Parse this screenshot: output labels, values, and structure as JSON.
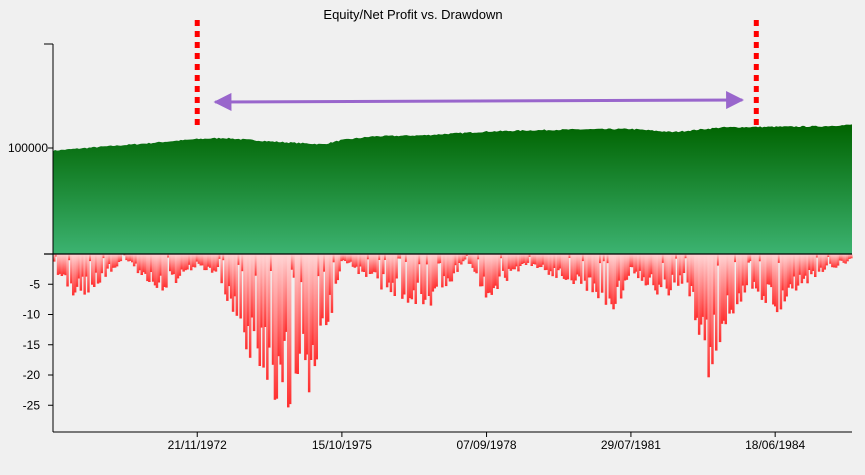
{
  "title": "Equity/Net Profit vs. Drawdown",
  "colors": {
    "background": "#f0f0f0",
    "equity_top": "#006400",
    "equity_bottom": "#3cb371",
    "drawdown_light": "#ffd6d6",
    "drawdown_dark": "#ff3030",
    "marker_line": "#ff0000",
    "arrow": "#9966cc"
  },
  "chart_data": [
    {
      "type": "area",
      "title": "Equity/Net Profit vs. Drawdown",
      "name": "equity",
      "y_tick_labels": [
        "100000"
      ],
      "ylim_note": "single labeled tick at 100000",
      "x_tick_labels": [
        "21/11/1972",
        "15/10/1975",
        "07/09/1978",
        "29/07/1981",
        "18/06/1984"
      ],
      "x": [
        "1970-01-01",
        "1970-12-01",
        "1971-12-01",
        "1972-11-21",
        "1973-06-01",
        "1974-06-01",
        "1975-06-01",
        "1975-10-15",
        "1976-06-01",
        "1977-06-01",
        "1978-09-07",
        "1979-06-01",
        "1980-06-01",
        "1981-07-29",
        "1982-06-01",
        "1983-06-01",
        "1984-06-18",
        "1985-06-01",
        "1986-01-01"
      ],
      "values": [
        97500,
        101000,
        104500,
        108500,
        109500,
        106000,
        103500,
        107500,
        111000,
        112000,
        115500,
        116500,
        117500,
        118000,
        115000,
        119500,
        120000,
        120500,
        122000
      ]
    },
    {
      "type": "area",
      "name": "drawdown",
      "y_tick_labels": [
        "-5",
        "-10",
        "-15",
        "-20",
        "-25"
      ],
      "ylim": [
        -29,
        0
      ],
      "x_tick_labels": [
        "21/11/1972",
        "15/10/1975",
        "07/09/1978",
        "29/07/1981",
        "18/06/1984"
      ],
      "x": [
        "1970-01-01",
        "1970-06-01",
        "1970-11-01",
        "1971-06-01",
        "1972-03-01",
        "1972-11-21",
        "1973-05-01",
        "1973-11-01",
        "1974-06-01",
        "1974-12-01",
        "1975-05-01",
        "1975-10-15",
        "1976-06-01",
        "1977-01-01",
        "1977-08-01",
        "1978-04-01",
        "1978-09-07",
        "1979-06-01",
        "1980-03-01",
        "1980-10-01",
        "1981-04-01",
        "1981-07-29",
        "1982-03-01",
        "1982-09-01",
        "1983-03-01",
        "1983-07-01",
        "1984-01-01",
        "1984-06-18",
        "1985-01-01",
        "1985-06-01",
        "1986-01-01"
      ],
      "values": [
        -2,
        -8,
        -5,
        -1,
        -6,
        -2,
        -4,
        -15,
        -22,
        -24,
        -20,
        -1,
        -5,
        -7,
        -9,
        -1,
        -7,
        -2,
        -4,
        -6,
        -9,
        -3,
        -7,
        -5,
        -20,
        -12,
        -6,
        -10,
        -5,
        -3,
        -1
      ]
    }
  ],
  "annotations": {
    "markers": [
      "1972-11-21",
      "1984-02-01"
    ],
    "arrow": {
      "from": "1972-11-21",
      "to": "1984-02-01",
      "direction": "both"
    }
  }
}
